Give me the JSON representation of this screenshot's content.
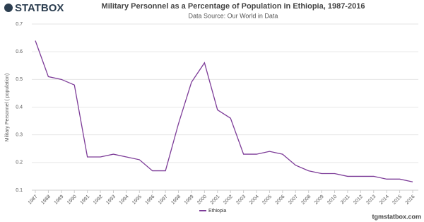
{
  "logo": "STATBOX",
  "footer": "tgmstatbox.com",
  "chart_data": {
    "type": "line",
    "title": "Military Personnel as a Percentage of Population in Ethiopia, 1987-2016",
    "subtitle": "Data Source: Our World in Data",
    "y_label": "Military Personnel ( population)",
    "categories": [
      "1987",
      "1988",
      "1989",
      "1990",
      "1991",
      "1992",
      "1993",
      "1994",
      "1995",
      "1996",
      "1997",
      "1998",
      "1999",
      "2000",
      "2001",
      "2002",
      "2003",
      "2004",
      "2005",
      "2006",
      "2007",
      "2008",
      "2009",
      "2010",
      "2011",
      "2012",
      "2013",
      "2014",
      "2015",
      "2016"
    ],
    "series": [
      {
        "name": "Ethiopia",
        "color": "#7d3c98",
        "values": [
          0.64,
          0.51,
          0.5,
          0.48,
          0.22,
          0.22,
          0.23,
          0.22,
          0.21,
          0.17,
          0.17,
          0.34,
          0.49,
          0.56,
          0.39,
          0.36,
          0.23,
          0.23,
          0.24,
          0.23,
          0.19,
          0.17,
          0.16,
          0.16,
          0.15,
          0.15,
          0.15,
          0.14,
          0.14,
          0.13
        ]
      }
    ],
    "ylim": [
      0.1,
      0.7
    ],
    "yticks": [
      0.1,
      0.2,
      0.3,
      0.4,
      0.5,
      0.6,
      0.7
    ],
    "grid": true,
    "legend": "bottom"
  }
}
